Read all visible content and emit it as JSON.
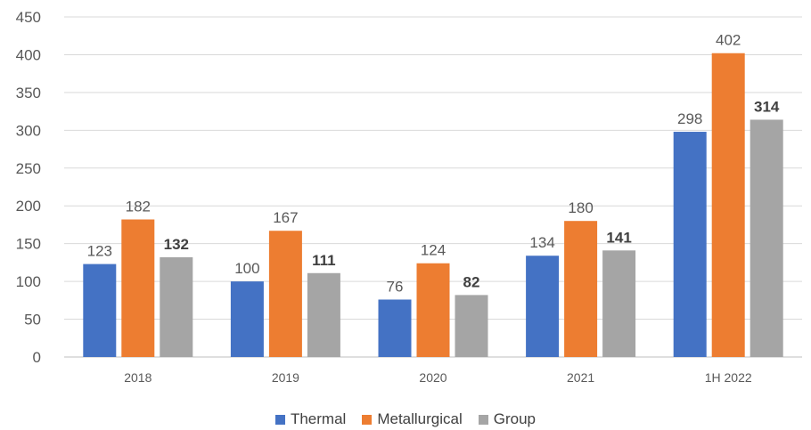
{
  "chart_data": {
    "type": "bar",
    "categories": [
      "2018",
      "2019",
      "2020",
      "2021",
      "1H 2022"
    ],
    "series": [
      {
        "name": "Thermal",
        "values": [
          123,
          100,
          76,
          134,
          298
        ],
        "color": "#4472C4",
        "label_bold": false
      },
      {
        "name": "Metallurgical",
        "values": [
          182,
          167,
          124,
          180,
          402
        ],
        "color": "#ED7D31",
        "label_bold": false
      },
      {
        "name": "Group",
        "values": [
          132,
          111,
          82,
          141,
          314
        ],
        "color": "#A5A5A5",
        "label_bold": true
      }
    ],
    "ylim": [
      0,
      450
    ],
    "yticks": [
      "0",
      "50",
      "100",
      "150",
      "200",
      "250",
      "300",
      "350",
      "400",
      "450"
    ],
    "grid": true,
    "legend_position": "bottom",
    "title": "",
    "xlabel": "",
    "ylabel": ""
  }
}
